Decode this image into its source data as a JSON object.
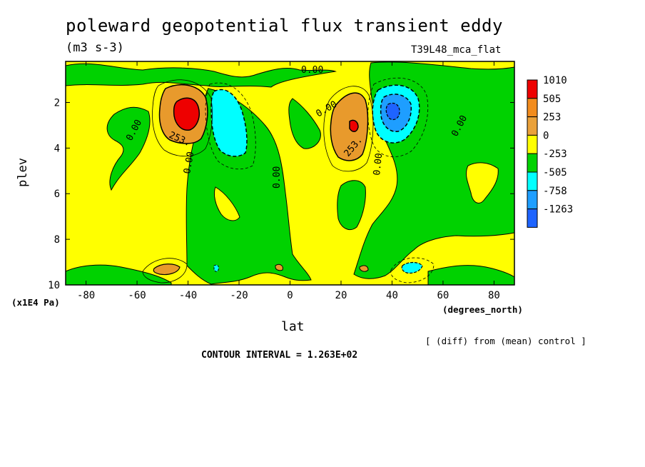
{
  "header": {
    "title": "poleward geopotential flux transient eddy",
    "units": "(m3 s-3)",
    "run_name": "T39L48_mca_flat"
  },
  "footer": {
    "note": "[ (diff) from (mean) control ]",
    "contour_interval": "CONTOUR INTERVAL = 1.263E+02"
  },
  "chart_data": {
    "type": "heatmap",
    "title": "poleward geopotential flux transient eddy",
    "xlabel": "lat",
    "xunits": "(degrees_north)",
    "ylabel": "plev",
    "yunits": "(x1E4 Pa)",
    "xlim": [
      -88,
      88
    ],
    "ylim": [
      10,
      0.2
    ],
    "xticks": [
      -80,
      -60,
      -40,
      -20,
      0,
      20,
      40,
      60,
      80
    ],
    "yticks": [
      2,
      4,
      6,
      8,
      10
    ],
    "contour_labels": [
      "0.00",
      "253."
    ],
    "legend": {
      "placement": "right",
      "levels": [
        "1010",
        "505",
        "253",
        "0",
        "-253",
        "-505",
        "-758",
        "-1263"
      ],
      "colors": [
        "#ee0000",
        "#f28c1e",
        "#eaa13a",
        "#ffff00",
        "#00d200",
        "#00ffff",
        "#1e9eff",
        "#1e64ff"
      ]
    },
    "colors": {
      "positive_low": "#ffff00",
      "negative_low": "#00d200",
      "positive_mid": "#e89a2c",
      "positive_high": "#ee0000",
      "negative_mid": "#00ffff",
      "negative_high": "#1e70ff"
    },
    "features": [
      {
        "sign": "positive",
        "lat": -40,
        "plev": 2.4,
        "peak": 1010
      },
      {
        "sign": "negative",
        "lat": -27,
        "plev": 3.0,
        "peak": -505
      },
      {
        "sign": "positive",
        "lat": 25,
        "plev": 2.9,
        "peak": 505
      },
      {
        "sign": "negative",
        "lat": 40,
        "plev": 2.4,
        "peak": -758
      },
      {
        "sign": "positive",
        "lat": -50,
        "plev": 9.2,
        "peak": 253
      },
      {
        "sign": "negative",
        "lat": 48,
        "plev": 9.2,
        "peak": -505
      }
    ]
  }
}
